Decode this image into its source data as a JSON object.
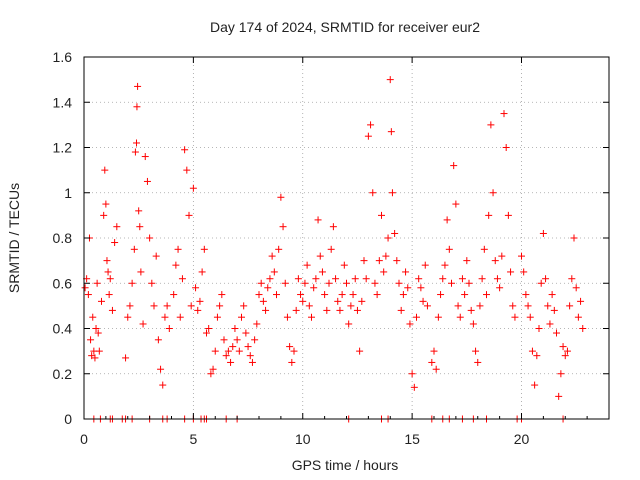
{
  "chart_data": {
    "type": "scatter",
    "title": "Day 174 of 2024, SRMTID for receiver eur2",
    "xlabel": "GPS time / hours",
    "ylabel": "SRMTID / TECUs",
    "xlim": [
      0,
      24
    ],
    "ylim": [
      0,
      1.6
    ],
    "xticks": [
      0,
      5,
      10,
      15,
      20
    ],
    "xtick_labels": [
      "0",
      "5",
      "10",
      "15",
      "20"
    ],
    "yticks": [
      0,
      0.2,
      0.4,
      0.6,
      0.8,
      1,
      1.2,
      1.4,
      1.6
    ],
    "ytick_labels": [
      "0",
      "0.2",
      "0.4",
      "0.6",
      "0.8",
      "1",
      "1.2",
      "1.4",
      "1.6"
    ],
    "grid": true,
    "marker": "plus",
    "color": "#ff0000",
    "series": [
      {
        "name": "SRMTID",
        "points": [
          [
            0.05,
            0.58
          ],
          [
            0.12,
            0.62
          ],
          [
            0.2,
            0.55
          ],
          [
            0.25,
            0.8
          ],
          [
            0.3,
            0.35
          ],
          [
            0.35,
            0.28
          ],
          [
            0.4,
            0.45
          ],
          [
            0.45,
            0.3
          ],
          [
            0.5,
            0.27
          ],
          [
            0.55,
            0.4
          ],
          [
            0.6,
            0.6
          ],
          [
            0.65,
            0.38
          ],
          [
            0.7,
            0.3
          ],
          [
            0.8,
            0.52
          ],
          [
            0.9,
            0.9
          ],
          [
            0.95,
            1.1
          ],
          [
            1.0,
            0.95
          ],
          [
            1.05,
            0.7
          ],
          [
            1.1,
            0.65
          ],
          [
            1.15,
            0.55
          ],
          [
            1.2,
            0.62
          ],
          [
            1.3,
            0.48
          ],
          [
            1.4,
            0.78
          ],
          [
            1.5,
            0.85
          ],
          [
            1.9,
            0.27
          ],
          [
            2.0,
            0.45
          ],
          [
            2.1,
            0.5
          ],
          [
            2.2,
            0.6
          ],
          [
            2.3,
            0.75
          ],
          [
            2.35,
            1.18
          ],
          [
            2.4,
            1.22
          ],
          [
            2.42,
            1.38
          ],
          [
            2.45,
            1.47
          ],
          [
            2.5,
            0.92
          ],
          [
            2.55,
            0.85
          ],
          [
            2.6,
            0.65
          ],
          [
            2.7,
            0.42
          ],
          [
            2.8,
            1.16
          ],
          [
            2.9,
            1.05
          ],
          [
            3.0,
            0.8
          ],
          [
            3.1,
            0.6
          ],
          [
            3.2,
            0.5
          ],
          [
            3.3,
            0.72
          ],
          [
            3.4,
            0.35
          ],
          [
            3.5,
            0.22
          ],
          [
            3.6,
            0.15
          ],
          [
            3.7,
            0.45
          ],
          [
            3.8,
            0.5
          ],
          [
            3.9,
            0.4
          ],
          [
            4.1,
            0.55
          ],
          [
            4.2,
            0.68
          ],
          [
            4.3,
            0.75
          ],
          [
            4.4,
            0.45
          ],
          [
            4.5,
            0.62
          ],
          [
            4.6,
            1.19
          ],
          [
            4.7,
            1.1
          ],
          [
            4.8,
            0.9
          ],
          [
            4.9,
            0.5
          ],
          [
            5.0,
            1.02
          ],
          [
            5.1,
            0.58
          ],
          [
            5.2,
            0.48
          ],
          [
            5.3,
            0.52
          ],
          [
            5.4,
            0.65
          ],
          [
            5.5,
            0.75
          ],
          [
            5.6,
            0.38
          ],
          [
            5.7,
            0.4
          ],
          [
            5.8,
            0.2
          ],
          [
            5.9,
            0.22
          ],
          [
            6.0,
            0.3
          ],
          [
            6.1,
            0.45
          ],
          [
            6.2,
            0.5
          ],
          [
            6.3,
            0.55
          ],
          [
            6.4,
            0.35
          ],
          [
            6.5,
            0.28
          ],
          [
            6.6,
            0.3
          ],
          [
            6.7,
            0.25
          ],
          [
            6.8,
            0.32
          ],
          [
            6.9,
            0.4
          ],
          [
            7.0,
            0.35
          ],
          [
            7.1,
            0.3
          ],
          [
            7.2,
            0.45
          ],
          [
            7.3,
            0.5
          ],
          [
            7.4,
            0.38
          ],
          [
            7.5,
            0.32
          ],
          [
            7.6,
            0.28
          ],
          [
            7.7,
            0.25
          ],
          [
            7.8,
            0.35
          ],
          [
            7.9,
            0.42
          ],
          [
            8.0,
            0.55
          ],
          [
            8.1,
            0.6
          ],
          [
            8.2,
            0.52
          ],
          [
            8.3,
            0.48
          ],
          [
            8.4,
            0.58
          ],
          [
            8.5,
            0.62
          ],
          [
            8.6,
            0.72
          ],
          [
            8.7,
            0.65
          ],
          [
            8.8,
            0.55
          ],
          [
            8.9,
            0.75
          ],
          [
            9.0,
            0.98
          ],
          [
            9.1,
            0.85
          ],
          [
            9.2,
            0.6
          ],
          [
            9.3,
            0.45
          ],
          [
            9.4,
            0.32
          ],
          [
            9.5,
            0.25
          ],
          [
            9.6,
            0.3
          ],
          [
            9.7,
            0.48
          ],
          [
            9.8,
            0.62
          ],
          [
            9.9,
            0.55
          ],
          [
            10.0,
            0.52
          ],
          [
            10.1,
            0.6
          ],
          [
            10.2,
            0.68
          ],
          [
            10.3,
            0.5
          ],
          [
            10.4,
            0.45
          ],
          [
            10.5,
            0.58
          ],
          [
            10.6,
            0.62
          ],
          [
            10.7,
            0.88
          ],
          [
            10.8,
            0.72
          ],
          [
            10.9,
            0.65
          ],
          [
            11.0,
            0.55
          ],
          [
            11.1,
            0.48
          ],
          [
            11.2,
            0.6
          ],
          [
            11.3,
            0.75
          ],
          [
            11.4,
            0.85
          ],
          [
            11.5,
            0.62
          ],
          [
            11.6,
            0.52
          ],
          [
            11.7,
            0.48
          ],
          [
            11.8,
            0.55
          ],
          [
            11.9,
            0.68
          ],
          [
            12.0,
            0.6
          ],
          [
            12.1,
            0.42
          ],
          [
            12.2,
            0.5
          ],
          [
            12.3,
            0.55
          ],
          [
            12.4,
            0.62
          ],
          [
            12.5,
            0.48
          ],
          [
            12.6,
            0.3
          ],
          [
            12.7,
            0.52
          ],
          [
            12.8,
            0.7
          ],
          [
            12.9,
            0.62
          ],
          [
            13.0,
            1.25
          ],
          [
            13.1,
            1.3
          ],
          [
            13.2,
            1.0
          ],
          [
            13.3,
            0.6
          ],
          [
            13.4,
            0.55
          ],
          [
            13.5,
            0.7
          ],
          [
            13.6,
            0.9
          ],
          [
            13.7,
            0.65
          ],
          [
            13.8,
            0.72
          ],
          [
            13.9,
            0.8
          ],
          [
            14.0,
            1.5
          ],
          [
            14.05,
            1.27
          ],
          [
            14.1,
            1.0
          ],
          [
            14.2,
            0.82
          ],
          [
            14.3,
            0.7
          ],
          [
            14.4,
            0.6
          ],
          [
            14.5,
            0.48
          ],
          [
            14.6,
            0.55
          ],
          [
            14.7,
            0.65
          ],
          [
            14.8,
            0.58
          ],
          [
            14.9,
            0.42
          ],
          [
            15.0,
            0.2
          ],
          [
            15.1,
            0.14
          ],
          [
            15.2,
            0.45
          ],
          [
            15.3,
            0.62
          ],
          [
            15.4,
            0.58
          ],
          [
            15.5,
            0.52
          ],
          [
            15.6,
            0.68
          ],
          [
            15.7,
            0.5
          ],
          [
            15.9,
            0.25
          ],
          [
            16.0,
            0.3
          ],
          [
            16.1,
            0.22
          ],
          [
            16.2,
            0.45
          ],
          [
            16.3,
            0.55
          ],
          [
            16.4,
            0.62
          ],
          [
            16.5,
            0.68
          ],
          [
            16.6,
            0.88
          ],
          [
            16.7,
            0.75
          ],
          [
            16.8,
            0.6
          ],
          [
            16.9,
            1.12
          ],
          [
            17.0,
            0.95
          ],
          [
            17.1,
            0.5
          ],
          [
            17.2,
            0.45
          ],
          [
            17.3,
            0.62
          ],
          [
            17.4,
            0.55
          ],
          [
            17.5,
            0.7
          ],
          [
            17.6,
            0.6
          ],
          [
            17.7,
            0.48
          ],
          [
            17.8,
            0.42
          ],
          [
            17.9,
            0.3
          ],
          [
            18.0,
            0.25
          ],
          [
            18.1,
            0.5
          ],
          [
            18.2,
            0.62
          ],
          [
            18.3,
            0.75
          ],
          [
            18.4,
            0.55
          ],
          [
            18.5,
            0.9
          ],
          [
            18.6,
            1.3
          ],
          [
            18.7,
            1.0
          ],
          [
            18.8,
            0.7
          ],
          [
            18.9,
            0.62
          ],
          [
            19.0,
            0.58
          ],
          [
            19.1,
            0.72
          ],
          [
            19.2,
            1.35
          ],
          [
            19.3,
            1.2
          ],
          [
            19.4,
            0.9
          ],
          [
            19.5,
            0.65
          ],
          [
            19.6,
            0.5
          ],
          [
            19.7,
            0.45
          ],
          [
            20.0,
            0.72
          ],
          [
            20.1,
            0.65
          ],
          [
            20.2,
            0.55
          ],
          [
            20.3,
            0.5
          ],
          [
            20.4,
            0.45
          ],
          [
            20.5,
            0.3
          ],
          [
            20.6,
            0.15
          ],
          [
            20.7,
            0.28
          ],
          [
            20.8,
            0.4
          ],
          [
            20.9,
            0.6
          ],
          [
            21.0,
            0.82
          ],
          [
            21.1,
            0.62
          ],
          [
            21.2,
            0.5
          ],
          [
            21.3,
            0.42
          ],
          [
            21.4,
            0.55
          ],
          [
            21.5,
            0.48
          ],
          [
            21.6,
            0.38
          ],
          [
            21.7,
            0.1
          ],
          [
            21.8,
            0.2
          ],
          [
            21.9,
            0.32
          ],
          [
            22.0,
            0.28
          ],
          [
            22.1,
            0.3
          ],
          [
            22.2,
            0.5
          ],
          [
            22.3,
            0.62
          ],
          [
            22.4,
            0.8
          ],
          [
            22.5,
            0.58
          ],
          [
            22.6,
            0.45
          ],
          [
            22.7,
            0.52
          ],
          [
            22.8,
            0.4
          ]
        ]
      }
    ],
    "zero_line_points_x": [
      0.45,
      0.75,
      1.2,
      1.3,
      1.75,
      1.9,
      2.2,
      3.0,
      3.6,
      3.8,
      4.6,
      5.0,
      5.35,
      5.5,
      5.6,
      6.5,
      7.0,
      12.1,
      13.6,
      13.9,
      15.9,
      16.4,
      16.7,
      17.3,
      17.8,
      18.4,
      19.8,
      20.0,
      21.9
    ]
  }
}
